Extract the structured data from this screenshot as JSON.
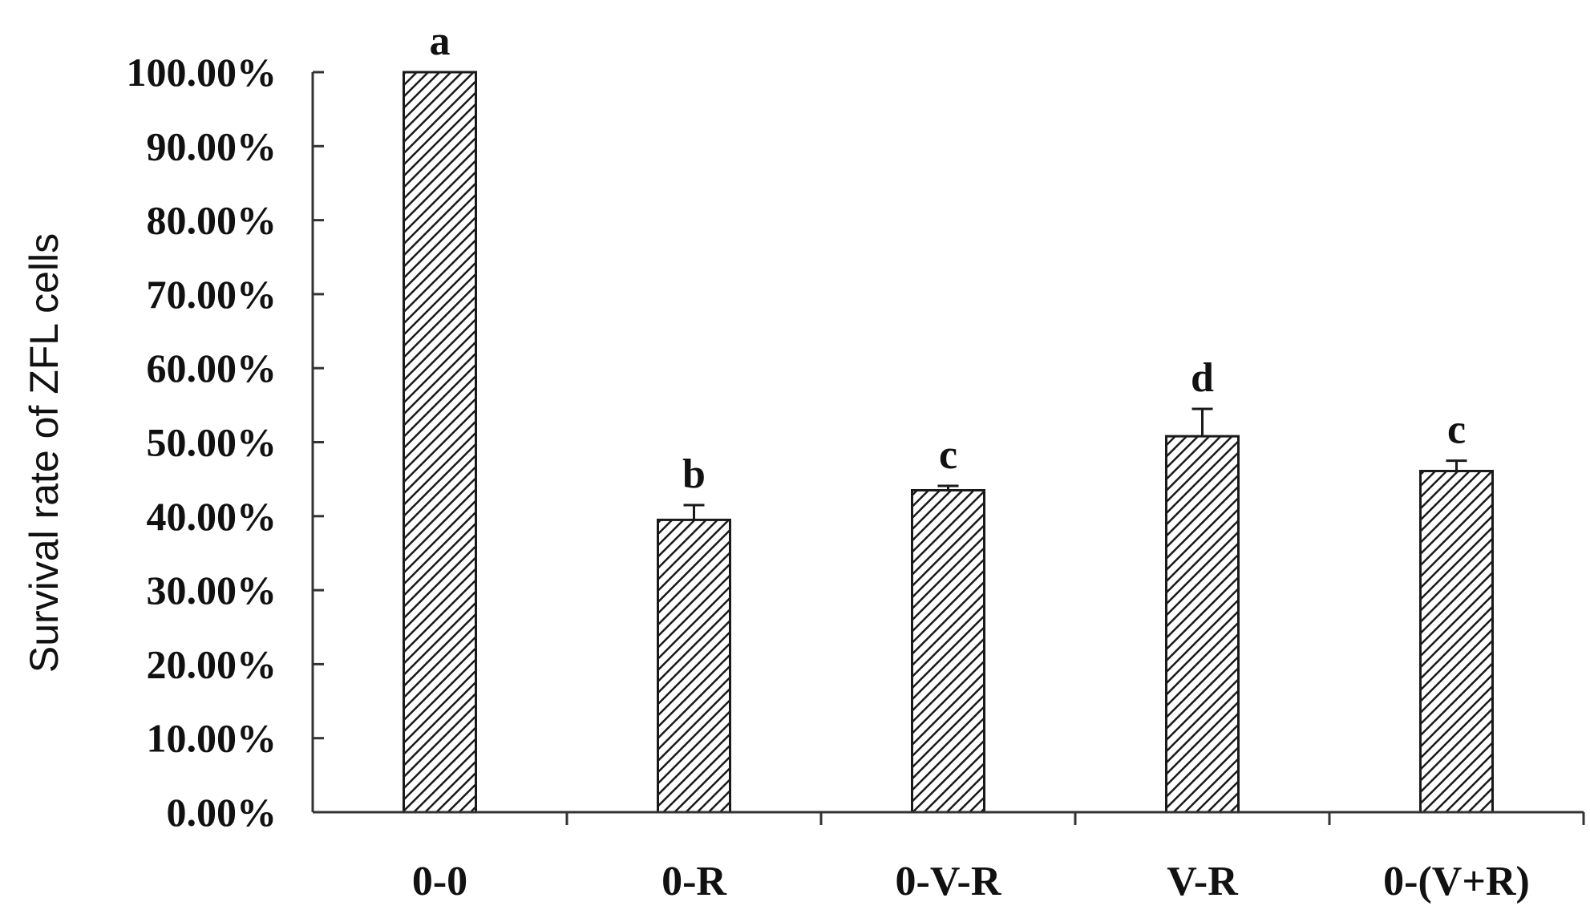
{
  "chart_data": {
    "type": "bar",
    "title": "",
    "xlabel": "",
    "ylabel": "Survival rate  of ZFL cells",
    "ylim": [
      0,
      100
    ],
    "yticks": [
      0,
      10,
      20,
      30,
      40,
      50,
      60,
      70,
      80,
      90,
      100
    ],
    "ytick_labels": [
      "0.00%",
      "10.00%",
      "20.00%",
      "30.00%",
      "40.00%",
      "50.00%",
      "60.00%",
      "70.00%",
      "80.00%",
      "90.00%",
      "100.00%"
    ],
    "categories": [
      "0-0",
      "0-R",
      "0-V-R",
      "V-R",
      "0-(V+R)"
    ],
    "values": [
      100.0,
      39.5,
      43.5,
      50.8,
      46.1
    ],
    "errors": [
      0.0,
      2.0,
      0.6,
      3.7,
      1.4
    ],
    "significance_labels": [
      "a",
      "b",
      "c",
      "d",
      "c"
    ],
    "grid": false,
    "legend": "none",
    "bar_fill": "diagonal-hatch",
    "colors": {
      "bar_line": "#1a1a1a",
      "axis": "#333333",
      "text": "#111111"
    }
  }
}
